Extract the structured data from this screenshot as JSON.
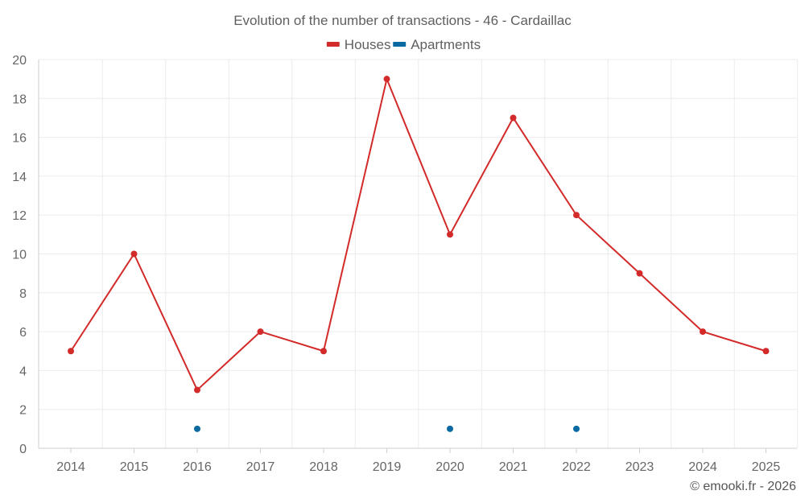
{
  "chart_data": {
    "type": "line",
    "title": "Evolution of the number of transactions - 46 - Cardaillac",
    "categories": [
      "2014",
      "2015",
      "2016",
      "2017",
      "2018",
      "2019",
      "2020",
      "2021",
      "2022",
      "2023",
      "2024",
      "2025"
    ],
    "series": [
      {
        "name": "Houses",
        "color": "#d32a2a",
        "values": [
          5,
          10,
          3,
          6,
          5,
          19,
          11,
          17,
          12,
          9,
          6,
          5
        ]
      },
      {
        "name": "Apartments",
        "color": "#0a6aa1",
        "values": [
          null,
          null,
          1,
          null,
          null,
          null,
          1,
          null,
          1,
          null,
          null,
          null
        ]
      }
    ],
    "ylim": [
      0,
      20
    ],
    "yticks": [
      0,
      2,
      4,
      6,
      8,
      10,
      12,
      14,
      16,
      18,
      20
    ],
    "xlabel": "",
    "ylabel": "",
    "grid": true,
    "legend": "top-center"
  },
  "credit": "© emooki.fr - 2026"
}
